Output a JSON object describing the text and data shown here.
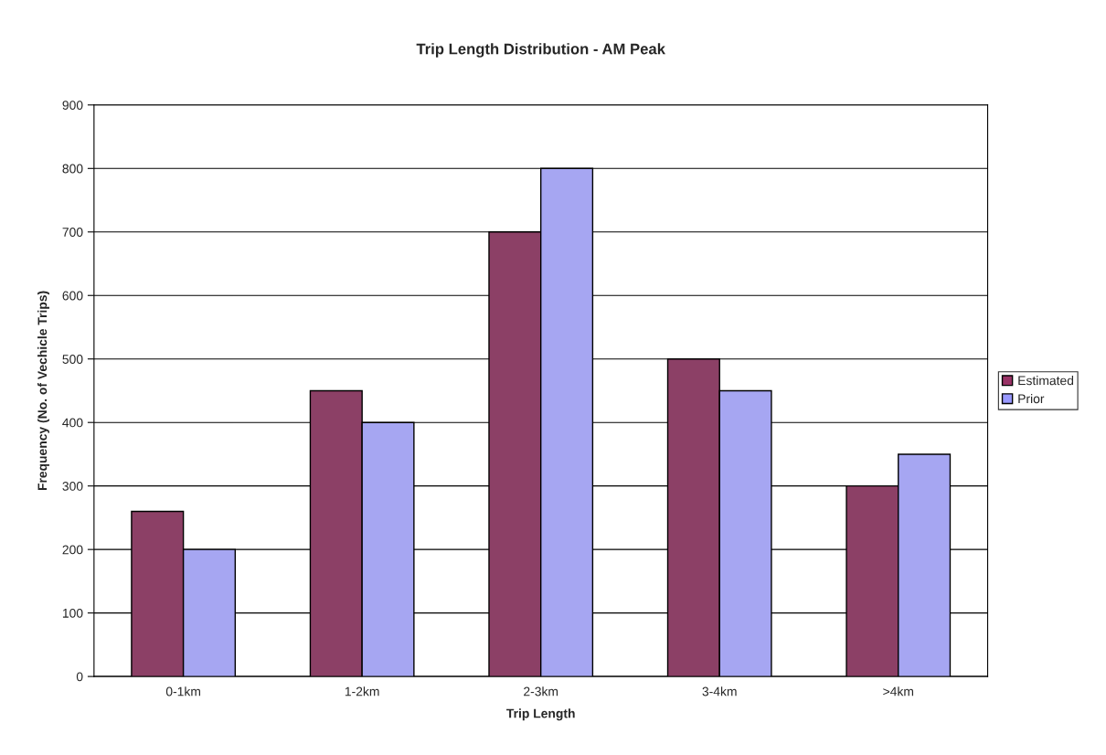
{
  "chart_data": {
    "type": "bar",
    "title": "Trip Length Distribution - AM Peak",
    "xlabel": "Trip Length",
    "ylabel": "Frequency (No. of Vechicle Trips)",
    "categories": [
      "0-1km",
      "1-2km",
      "2-3km",
      "3-4km",
      ">4km"
    ],
    "series": [
      {
        "name": "Estimated",
        "color": "#993366",
        "values": [
          260,
          450,
          700,
          500,
          300
        ]
      },
      {
        "name": "Prior",
        "color": "#9999ff",
        "values": [
          200,
          400,
          800,
          450,
          350
        ]
      }
    ],
    "ylim": [
      0,
      900
    ],
    "yticks": [
      0,
      100,
      200,
      300,
      400,
      500,
      600,
      700,
      800,
      900
    ],
    "grid": "y",
    "legend": "right"
  }
}
